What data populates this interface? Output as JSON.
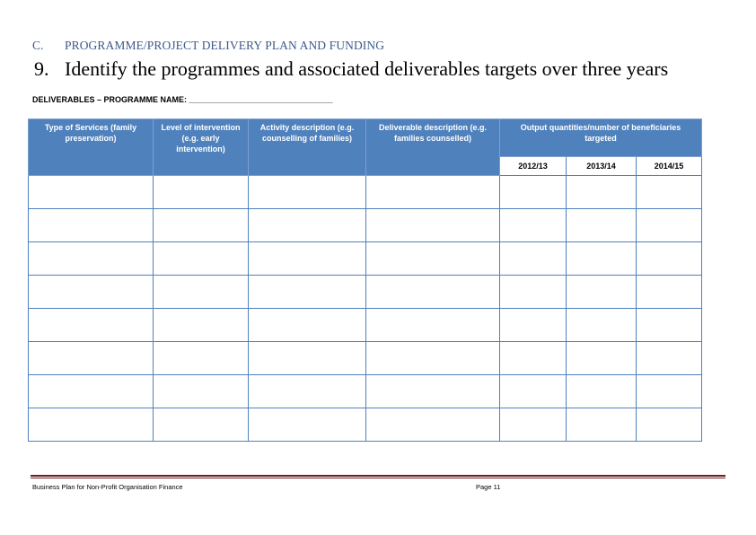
{
  "section": {
    "letter": "C.",
    "title": "PROGRAMME/PROJECT DELIVERY PLAN AND FUNDING"
  },
  "heading": {
    "number": "9.",
    "text": "Identify the programmes and associated deliverables targets over three years"
  },
  "subheading": "DELIVERABLES – PROGRAMME NAME: ________________________________",
  "table": {
    "columns": [
      "Type of Services (family preservation)",
      "Level of intervention (e.g. early intervention)",
      "Activity description (e.g. counselling of families)",
      "Deliverable description (e.g. families counselled)"
    ],
    "output_header": "Output quantities/number of beneficiaries targeted",
    "years": [
      "2012/13",
      "2013/14",
      "2014/15"
    ],
    "rows": [
      [
        "",
        "",
        "",
        "",
        "",
        "",
        ""
      ],
      [
        "",
        "",
        "",
        "",
        "",
        "",
        ""
      ],
      [
        "",
        "",
        "",
        "",
        "",
        "",
        ""
      ],
      [
        "",
        "",
        "",
        "",
        "",
        "",
        ""
      ],
      [
        "",
        "",
        "",
        "",
        "",
        "",
        ""
      ],
      [
        "",
        "",
        "",
        "",
        "",
        "",
        ""
      ],
      [
        "",
        "",
        "",
        "",
        "",
        "",
        ""
      ],
      [
        "",
        "",
        "",
        "",
        "",
        "",
        ""
      ]
    ]
  },
  "footer": {
    "left": "Business Plan for Non-Profit Organisation Finance",
    "right": "Page 11"
  }
}
